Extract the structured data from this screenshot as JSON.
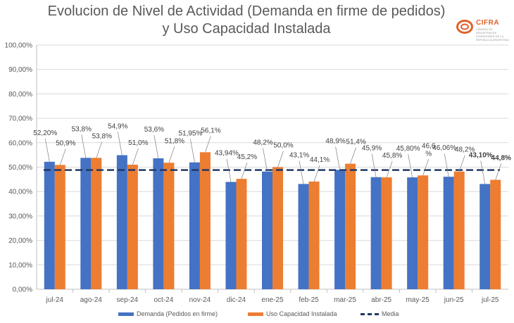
{
  "title": {
    "line1": "Evolucion de Nivel de Actividad (Demanda en firme de pedidos)",
    "line2": "y Uso Capacidad Instalada"
  },
  "logo": {
    "name": "CIFRA",
    "subtitle": "CÁMARA DE INDUSTRIALES FUNDIDORES DE LA REPÚBLICA ARGENTINA"
  },
  "colors": {
    "demanda": "#4472c4",
    "uso": "#ed7d31",
    "media": "#203864",
    "grid": "#d9d9d9",
    "axis": "#bfbfbf"
  },
  "chart_data": {
    "type": "bar",
    "categories": [
      "jul-24",
      "ago-24",
      "sep-24",
      "oct-24",
      "nov-24",
      "dic-24",
      "ene-25",
      "feb-25",
      "mar-25",
      "abr-25",
      "may-25",
      "jun-25",
      "jul-25"
    ],
    "series": [
      {
        "name": "Demanda (Pedidos en firme)",
        "values": [
          52.2,
          53.8,
          54.9,
          53.6,
          51.95,
          43.94,
          48.2,
          43.1,
          48.9,
          45.9,
          45.8,
          46.06,
          43.1
        ],
        "labels": [
          "52,20%",
          "53,8%",
          "54,9%",
          "53,6%",
          "51,95%",
          "43,94%",
          "48,2%",
          "43,1%",
          "48,9%",
          "45,9%",
          "45,80%",
          "46,06%",
          "43,10%"
        ]
      },
      {
        "name": "Uso Capacidad Instalada",
        "values": [
          50.9,
          53.8,
          51.0,
          51.8,
          56.1,
          45.2,
          50.0,
          44.1,
          51.4,
          45.8,
          46.6,
          48.2,
          44.8
        ],
        "labels": [
          "50,9%",
          "53,8%",
          "51,0%",
          "51,8%",
          "56,1%",
          "45,2%",
          "50,0%",
          "44,1%",
          "51,4%",
          "45,8%",
          "46,6\n%",
          "48,2%",
          "44,8%"
        ]
      }
    ],
    "media": {
      "name": "Media",
      "value": 48.8
    },
    "yticks": [
      "0,00%",
      "10,00%",
      "20,00%",
      "30,00%",
      "40,00%",
      "50,00%",
      "60,00%",
      "70,00%",
      "80,00%",
      "90,00%",
      "100,00%"
    ],
    "ylim": [
      0,
      100
    ],
    "grid": true,
    "legend_position": "bottom"
  },
  "legend": {
    "demanda": "Demanda (Pedidos en firme)",
    "uso": "Uso Capacidad Instalada",
    "media": "Media"
  }
}
